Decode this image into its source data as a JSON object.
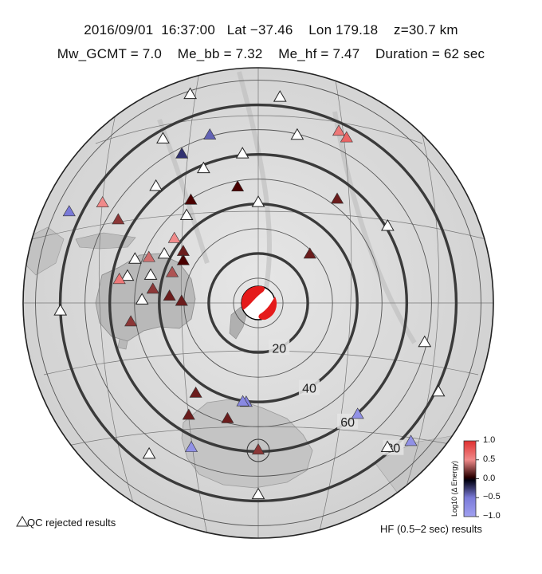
{
  "header": {
    "line1": "2016/09/01  16:37:00   Lat −37.46    Lon 179.18    z=30.7 km",
    "line2": "Mw_GCMT = 7.0    Me_bb = 7.32    Me_hf = 7.47    Duration = 62 sec"
  },
  "event": {
    "date": "2016/09/01",
    "time": "16:37:00",
    "lat": -37.46,
    "lon": 179.18,
    "depth_km": 30.7
  },
  "magnitudes": {
    "Mw_GCMT": 7.0,
    "Me_bb": 7.32,
    "Me_hf": 7.47,
    "duration_sec": 62
  },
  "distance_rings": {
    "labels": [
      "20",
      "40",
      "60",
      "80"
    ],
    "degrees": [
      20,
      40,
      60,
      80
    ],
    "unlabeled_degrees": [
      10,
      30,
      50,
      70,
      90
    ]
  },
  "colorbar": {
    "title": "Log10 (Δ Energy)",
    "ticks": [
      "1.0",
      "0.5",
      "0.0",
      "−0.5",
      "−1.0"
    ],
    "colors": {
      "high": "#e03030",
      "mid_pos": "#f08a8a",
      "zero": "#000000",
      "mid_neg": "#7a7ad8",
      "low": "#a0a0f0"
    }
  },
  "legend": {
    "qc_label": "QC rejected results",
    "hf_label": "HF (0.5–2 sec) results"
  },
  "stations": [
    {
      "az": -18,
      "dist": 89,
      "v": null
    },
    {
      "az": 6,
      "dist": 84,
      "v": null
    },
    {
      "az": 13,
      "dist": 70,
      "v": null
    },
    {
      "az": 25,
      "dist": 77,
      "v": 0.6
    },
    {
      "az": 28,
      "dist": 76,
      "v": 0.7
    },
    {
      "az": 37,
      "dist": 53,
      "v": 0.1
    },
    {
      "az": -30,
      "dist": 77,
      "v": null
    },
    {
      "az": -16,
      "dist": 71,
      "v": -0.4
    },
    {
      "az": -6,
      "dist": 61,
      "v": null
    },
    {
      "az": -27,
      "dist": 68,
      "v": -0.2
    },
    {
      "az": -22,
      "dist": 59,
      "v": null
    },
    {
      "az": -10,
      "dist": 48,
      "v": 0.0
    },
    {
      "az": 0,
      "dist": 41,
      "v": null
    },
    {
      "az": -41,
      "dist": 63,
      "v": null
    },
    {
      "az": -33,
      "dist": 50,
      "v": 0.0
    },
    {
      "az": -39,
      "dist": 46,
      "v": null
    },
    {
      "az": 46,
      "dist": 29,
      "v": 0.1
    },
    {
      "az": 59,
      "dist": 61,
      "v": null
    },
    {
      "az": -57,
      "dist": 75,
      "v": 0.5
    },
    {
      "az": -59,
      "dist": 66,
      "v": 0.2
    },
    {
      "az": -64,
      "dist": 85,
      "v": -0.5
    },
    {
      "az": -52,
      "dist": 43,
      "v": 0.5
    },
    {
      "az": -55,
      "dist": 37,
      "v": 0.1
    },
    {
      "az": -60,
      "dist": 35,
      "v": 0.0
    },
    {
      "az": -62,
      "dist": 43,
      "v": null
    },
    {
      "az": -67,
      "dist": 48,
      "v": 0.4
    },
    {
      "az": -70,
      "dist": 53,
      "v": null
    },
    {
      "az": -70,
      "dist": 37,
      "v": 0.3
    },
    {
      "az": -75,
      "dist": 45,
      "v": null
    },
    {
      "az": -78,
      "dist": 54,
      "v": null
    },
    {
      "az": -80,
      "dist": 57,
      "v": 0.6
    },
    {
      "az": -82,
      "dist": 43,
      "v": 0.2
    },
    {
      "az": -85,
      "dist": 36,
      "v": 0.1
    },
    {
      "az": -88,
      "dist": 47,
      "v": null
    },
    {
      "az": -88,
      "dist": 31,
      "v": 0.1
    },
    {
      "az": -98,
      "dist": 52,
      "v": 0.2
    },
    {
      "az": -92,
      "dist": 80,
      "v": null
    },
    {
      "az": 103,
      "dist": 69,
      "v": null
    },
    {
      "az": -145,
      "dist": 44,
      "v": 0.1
    },
    {
      "az": -148,
      "dist": 53,
      "v": 0.1
    },
    {
      "az": -165,
      "dist": 48,
      "v": 0.1
    },
    {
      "az": -173,
      "dist": 40,
      "v": -0.6
    },
    {
      "az": -171,
      "dist": 40,
      "v": -0.7
    },
    {
      "az": 180,
      "dist": 59,
      "v": 0.2
    },
    {
      "az": -155,
      "dist": 64,
      "v": -0.8
    },
    {
      "az": -144,
      "dist": 75,
      "v": null
    },
    {
      "az": 180,
      "dist": 77,
      "v": null
    },
    {
      "az": 138,
      "dist": 60,
      "v": -0.8
    },
    {
      "az": 132,
      "dist": 83,
      "v": -0.8
    },
    {
      "az": 138,
      "dist": 78,
      "v": null
    },
    {
      "az": 116,
      "dist": 81,
      "v": null
    }
  ]
}
